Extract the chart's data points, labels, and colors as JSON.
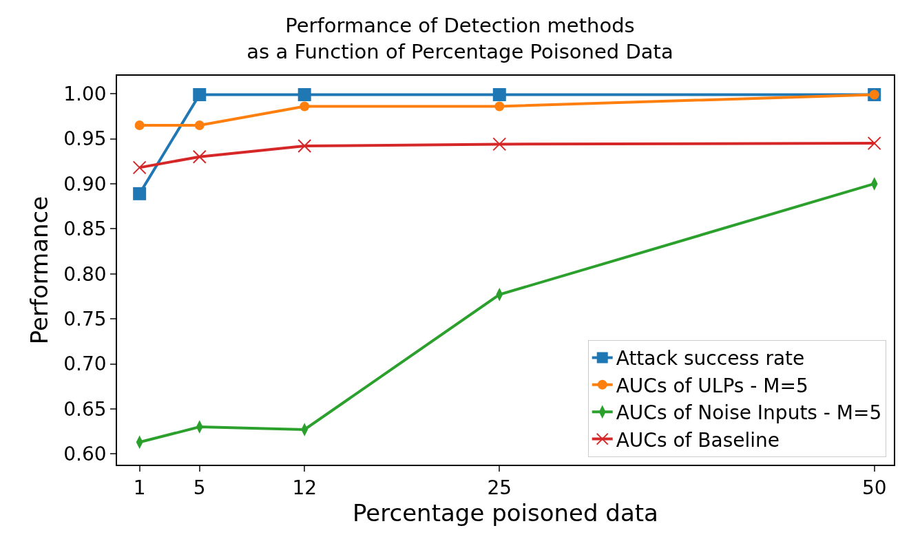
{
  "chart_data": {
    "type": "line",
    "title": "Performance of Detection methods\nas a Function of Percentage Poisoned Data",
    "xlabel": "Percentage poisoned data",
    "ylabel": "Performance",
    "x": [
      1,
      5,
      12,
      25,
      50
    ],
    "series": [
      {
        "name": "Attack success rate",
        "color": "#1f77b4",
        "marker": "square",
        "values": [
          0.889,
          0.999,
          0.999,
          0.999,
          0.999
        ]
      },
      {
        "name": "AUCs of ULPs - M=5",
        "color": "#ff7f0e",
        "marker": "circle",
        "values": [
          0.965,
          0.965,
          0.986,
          0.986,
          0.999
        ]
      },
      {
        "name": "AUCs of Noise Inputs - M=5",
        "color": "#2ca02c",
        "marker": "diamond",
        "values": [
          0.613,
          0.63,
          0.627,
          0.777,
          0.9
        ]
      },
      {
        "name": "AUCs of Baseline",
        "color": "#d62728",
        "marker": "cross",
        "values": [
          0.918,
          0.93,
          0.942,
          0.944,
          0.945
        ]
      }
    ],
    "xlim": [
      -0.5,
      51.3
    ],
    "xticks": [
      1,
      5,
      12,
      25,
      50
    ],
    "ylim": [
      0.588,
      1.02
    ],
    "yticks": [
      {
        "value": 0.6,
        "label": "0.60"
      },
      {
        "value": 0.65,
        "label": "0.65"
      },
      {
        "value": 0.7,
        "label": "0.70"
      },
      {
        "value": 0.75,
        "label": "0.75"
      },
      {
        "value": 0.8,
        "label": "0.80"
      },
      {
        "value": 0.85,
        "label": "0.85"
      },
      {
        "value": 0.9,
        "label": "0.90"
      },
      {
        "value": 0.95,
        "label": "0.95"
      },
      {
        "value": 1.0,
        "label": "1.00"
      }
    ],
    "grid": false,
    "legend": "bottom right",
    "line_style": "solid"
  }
}
